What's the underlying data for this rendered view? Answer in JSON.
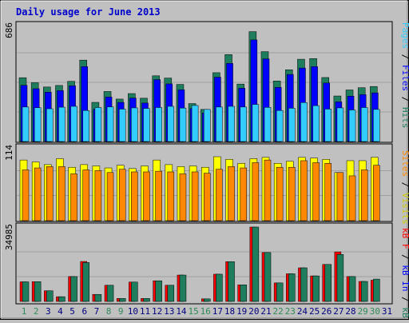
{
  "title": "Daily usage for June 2013",
  "colors": {
    "title": "#0000cc",
    "hits": "#1e7d5c",
    "files": "#0000ff",
    "pages": "#33ccff",
    "visits": "#ffff00",
    "sites": "#ff8800",
    "kbin": "#1e7d5c",
    "kbf": "#ff0000",
    "weekend": "#2e8b57",
    "weekday": "#000080"
  },
  "chart_data": [
    {
      "type": "bar",
      "categories": [
        "1",
        "2",
        "3",
        "4",
        "5",
        "6",
        "7",
        "8",
        "9",
        "10",
        "11",
        "12",
        "13",
        "14",
        "15",
        "16",
        "17",
        "18",
        "19",
        "20",
        "21",
        "22",
        "23",
        "24",
        "25",
        "26",
        "27",
        "28",
        "29",
        "30",
        "31"
      ],
      "ymax_label": "686",
      "ylim": [
        0,
        686
      ],
      "series": [
        {
          "name": "Hits",
          "values": [
            370,
            341,
            316,
            325,
            349,
            472,
            227,
            290,
            246,
            278,
            251,
            381,
            368,
            331,
            220,
            186,
            399,
            504,
            333,
            637,
            521,
            351,
            416,
            477,
            481,
            371,
            264,
            299,
            312,
            319,
            0
          ]
        },
        {
          "name": "Files",
          "values": [
            326,
            306,
            286,
            295,
            323,
            434,
            187,
            258,
            227,
            252,
            223,
            359,
            334,
            300,
            191,
            165,
            373,
            453,
            309,
            589,
            479,
            314,
            389,
            426,
            434,
            339,
            230,
            263,
            272,
            282,
            0
          ]
        },
        {
          "name": "Pages",
          "values": [
            200,
            196,
            190,
            199,
            204,
            180,
            197,
            201,
            188,
            195,
            192,
            197,
            204,
            194,
            209,
            186,
            200,
            204,
            200,
            215,
            198,
            180,
            193,
            226,
            208,
            188,
            195,
            183,
            197,
            186,
            0
          ]
        }
      ],
      "right_labels": [
        "Pages",
        "Files",
        "Hits"
      ]
    },
    {
      "type": "bar",
      "categories": [
        "1",
        "2",
        "3",
        "4",
        "5",
        "6",
        "7",
        "8",
        "9",
        "10",
        "11",
        "12",
        "13",
        "14",
        "15",
        "16",
        "17",
        "18",
        "19",
        "20",
        "21",
        "22",
        "23",
        "24",
        "25",
        "26",
        "27",
        "28",
        "29",
        "30",
        "31"
      ],
      "ymax_label": "114",
      "ylim": [
        0,
        114
      ],
      "series": [
        {
          "name": "Visits",
          "values": [
            92,
            89,
            85,
            94,
            81,
            85,
            83,
            80,
            84,
            79,
            83,
            92,
            85,
            82,
            83,
            81,
            97,
            93,
            87,
            94,
            96,
            87,
            90,
            96,
            95,
            93,
            73,
            91,
            91,
            96,
            0
          ]
        },
        {
          "name": "Sites",
          "values": [
            77,
            80,
            82,
            82,
            71,
            77,
            76,
            73,
            78,
            74,
            74,
            75,
            74,
            71,
            74,
            72,
            78,
            82,
            80,
            88,
            92,
            81,
            81,
            91,
            88,
            87,
            73,
            68,
            77,
            84,
            0
          ]
        }
      ],
      "right_labels": [
        "Visits",
        "Sites"
      ]
    },
    {
      "type": "bar",
      "categories": [
        "1",
        "2",
        "3",
        "4",
        "5",
        "6",
        "7",
        "8",
        "9",
        "10",
        "11",
        "12",
        "13",
        "14",
        "15",
        "16",
        "17",
        "18",
        "19",
        "20",
        "21",
        "22",
        "23",
        "24",
        "25",
        "26",
        "27",
        "28",
        "29",
        "30",
        "31"
      ],
      "ymax_label": "34985",
      "ylim": [
        0,
        34985
      ],
      "series": [
        {
          "name": "KB F",
          "values": [
            9200,
            9300,
            5000,
            2200,
            11700,
            18800,
            3300,
            7600,
            1400,
            9100,
            1400,
            9700,
            7600,
            12400,
            0,
            1200,
            12800,
            18700,
            7800,
            34985,
            23000,
            8700,
            13000,
            15800,
            12000,
            17400,
            23300,
            11700,
            9400,
            10000,
            0
          ]
        },
        {
          "name": "KB In",
          "values": [
            9200,
            9300,
            5000,
            2200,
            11700,
            18300,
            3300,
            7600,
            1400,
            9100,
            1400,
            9700,
            7600,
            12400,
            0,
            1200,
            12800,
            18700,
            7800,
            34985,
            23000,
            8700,
            13000,
            15800,
            12000,
            17400,
            22100,
            11700,
            9400,
            10500,
            0
          ]
        }
      ],
      "right_labels": [
        "kB F",
        "kB In",
        "kB Out"
      ]
    }
  ]
}
